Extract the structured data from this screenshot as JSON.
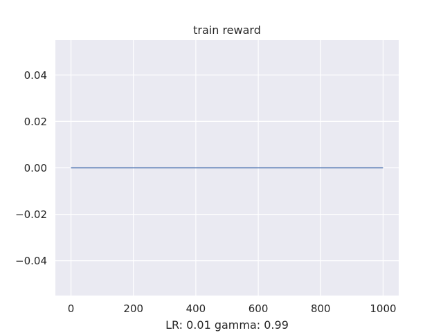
{
  "chart_data": {
    "type": "line",
    "title": "train reward",
    "xlabel": "LR: 0.01 gamma: 0.99",
    "ylabel": "",
    "xlim": [
      -50,
      1050
    ],
    "ylim": [
      -0.055,
      0.055
    ],
    "xticks": [
      0,
      200,
      400,
      600,
      800,
      1000
    ],
    "xtick_labels": [
      "0",
      "200",
      "400",
      "600",
      "800",
      "1000"
    ],
    "yticks": [
      0.04,
      0.02,
      0.0,
      -0.02,
      -0.04
    ],
    "ytick_labels": [
      "0.04",
      "0.02",
      "0.00",
      "−0.02",
      "−0.04"
    ],
    "grid": true,
    "background_color": "#eaeaf2",
    "grid_color": "#ffffff",
    "series": [
      {
        "color": "#4c72b0",
        "x": [
          0,
          1000
        ],
        "y": [
          0.0,
          0.0
        ]
      }
    ]
  }
}
